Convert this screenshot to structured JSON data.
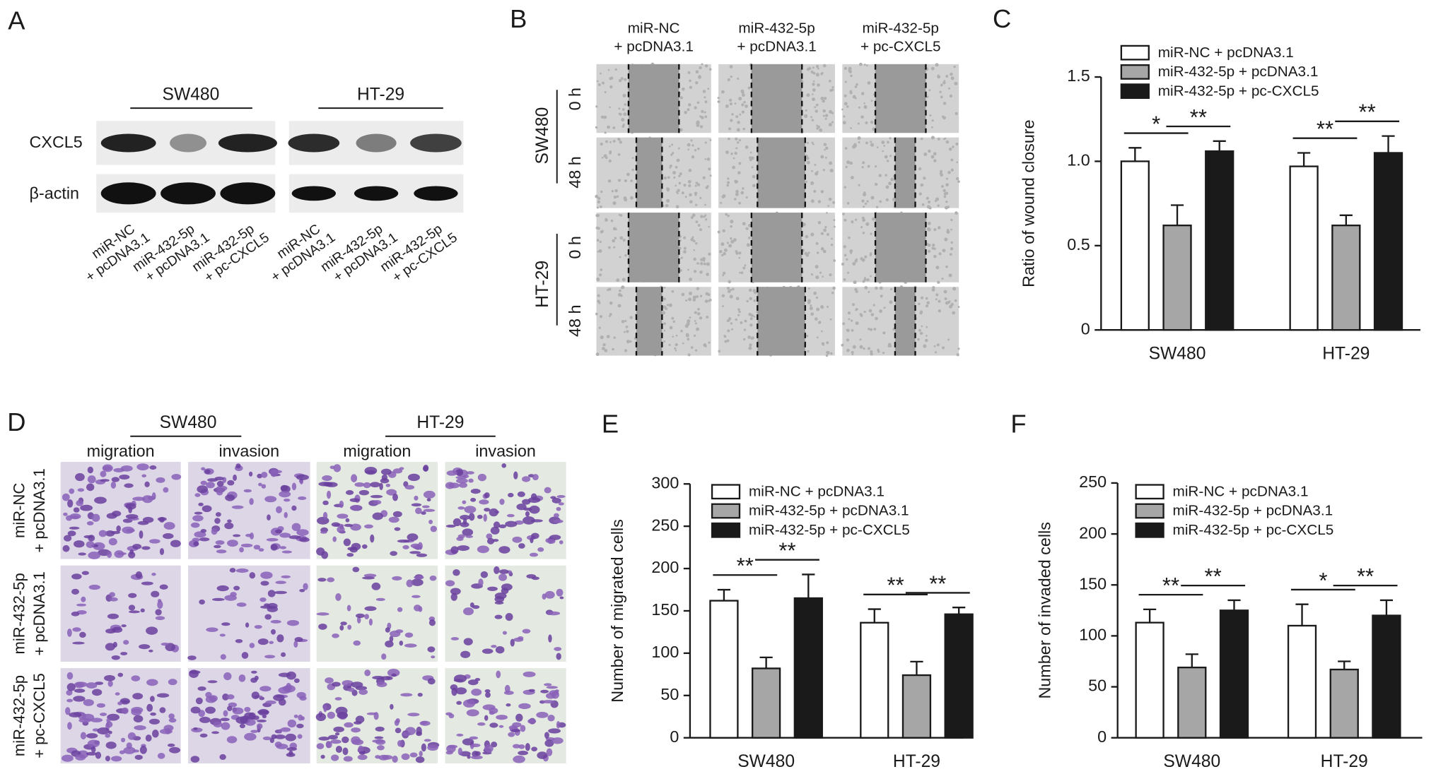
{
  "blot": {
    "label": "A",
    "cell_lines": [
      "SW480",
      "HT-29"
    ],
    "proteins": [
      "CXCL5",
      "β-actin"
    ],
    "lanes": [
      [
        "miR-NC",
        "+ pcDNA3.1"
      ],
      [
        "miR-432-5p",
        "+ pcDNA3.1"
      ],
      [
        "miR-432-5p",
        "+ pc-CXCL5"
      ]
    ]
  },
  "wound": {
    "label": "B",
    "columns": [
      [
        "miR-NC",
        "+ pcDNA3.1"
      ],
      [
        "miR-432-5p",
        "+ pcDNA3.1"
      ],
      [
        "miR-432-5p",
        "+ pc-CXCL5"
      ]
    ],
    "cell_lines": [
      "SW480",
      "HT-29"
    ],
    "times": [
      "0 h",
      "48 h"
    ]
  },
  "transwell": {
    "label": "D",
    "cell_lines": [
      "SW480",
      "HT-29"
    ],
    "assays": [
      "migration",
      "invasion"
    ],
    "rows": [
      [
        "miR-NC",
        "+ pcDNA3.1"
      ],
      [
        "miR-432-5p",
        "+ pcDNA3.1"
      ],
      [
        "miR-432-5p",
        "+ pc-CXCL5"
      ]
    ]
  },
  "chart_data": [
    {
      "type": "bar",
      "label": "C",
      "ylabel": "Ratio of wound closure",
      "categories": [
        "SW480",
        "HT-29"
      ],
      "series": [
        {
          "name": "miR-NC + pcDNA3.1",
          "color": "#ffffff",
          "values": [
            1.0,
            0.97
          ],
          "errors": [
            0.08,
            0.08
          ]
        },
        {
          "name": "miR-432-5p + pcDNA3.1",
          "color": "#a6a6a6",
          "values": [
            0.62,
            0.62
          ],
          "errors": [
            0.12,
            0.06
          ]
        },
        {
          "name": "miR-432-5p + pc-CXCL5",
          "color": "#1a1a1a",
          "values": [
            1.06,
            1.05
          ],
          "errors": [
            0.06,
            0.1
          ]
        }
      ],
      "ylim": [
        0,
        1.5
      ],
      "yticks": [
        0,
        0.5,
        {
          "value": 1,
          "label": "1.0"
        },
        1.5
      ],
      "significance": [
        [
          "*",
          "**"
        ],
        [
          "**",
          "**"
        ]
      ],
      "legend": "upper left"
    },
    {
      "type": "bar",
      "label": "E",
      "ylabel": "Number of migrated cells",
      "categories": [
        "SW480",
        "HT-29"
      ],
      "series": [
        {
          "name": "miR-NC + pcDNA3.1",
          "color": "#ffffff",
          "values": [
            162,
            136
          ],
          "errors": [
            13,
            16
          ]
        },
        {
          "name": "miR-432-5p + pcDNA3.1",
          "color": "#a6a6a6",
          "values": [
            82,
            74
          ],
          "errors": [
            13,
            16
          ]
        },
        {
          "name": "miR-432-5p + pc-CXCL5",
          "color": "#1a1a1a",
          "values": [
            165,
            146
          ],
          "errors": [
            28,
            8
          ]
        }
      ],
      "ylim": [
        0,
        300
      ],
      "yticks": [
        0,
        50,
        100,
        150,
        200,
        250,
        300
      ],
      "significance": [
        [
          "**",
          "**"
        ],
        [
          "**",
          "**"
        ]
      ],
      "legend": "upper left"
    },
    {
      "type": "bar",
      "label": "F",
      "ylabel": "Number of invaded cells",
      "categories": [
        "SW480",
        "HT-29"
      ],
      "series": [
        {
          "name": "miR-NC + pcDNA3.1",
          "color": "#ffffff",
          "values": [
            113,
            110
          ],
          "errors": [
            13,
            21
          ]
        },
        {
          "name": "miR-432-5p + pcDNA3.1",
          "color": "#a6a6a6",
          "values": [
            69,
            67
          ],
          "errors": [
            13,
            8
          ]
        },
        {
          "name": "miR-432-5p + pc-CXCL5",
          "color": "#1a1a1a",
          "values": [
            125,
            120
          ],
          "errors": [
            10,
            15
          ]
        }
      ],
      "ylim": [
        0,
        250
      ],
      "yticks": [
        0,
        50,
        100,
        150,
        200,
        250
      ],
      "significance": [
        [
          "**",
          "**"
        ],
        [
          "*",
          "**"
        ]
      ],
      "legend": "upper left"
    }
  ]
}
